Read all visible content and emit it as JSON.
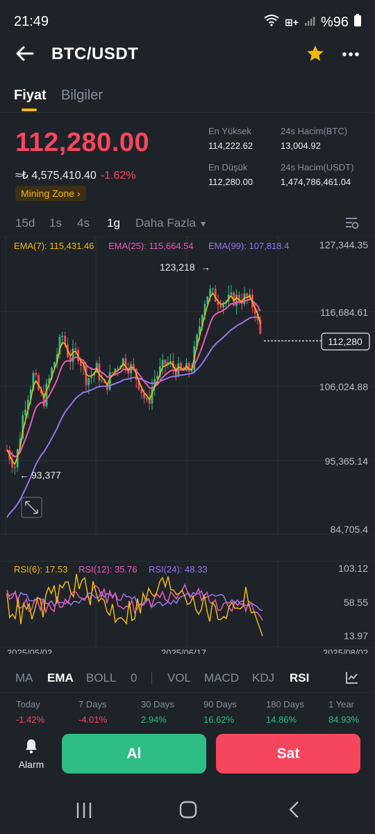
{
  "status": {
    "time": "21:49",
    "battery": "%96"
  },
  "header": {
    "pair": "BTC/USDT"
  },
  "tabs": [
    {
      "label": "Fiyat"
    },
    {
      "label": "Bilgiler"
    }
  ],
  "price": {
    "last": "112,280.00",
    "fiat": "≈₺ 4,575,410.40",
    "change": "-1.62%",
    "badge": "Mining Zone"
  },
  "stats": {
    "high_label": "En Yüksek",
    "high": "114,222.62",
    "low_label": "En Düşük",
    "low": "112,280.00",
    "vol_btc_label": "24s Hacim(BTC)",
    "vol_btc": "13,004.92",
    "vol_usdt_label": "24s Hacim(USDT)",
    "vol_usdt": "1,474,786,461.04"
  },
  "intervals": {
    "i1": "15d",
    "i2": "1s",
    "i3": "4s",
    "i4": "1g",
    "more": "Daha Fazla"
  },
  "chart": {
    "ema7": "EMA(7): 115,431.46",
    "ema25": "EMA(25): 115,664.54",
    "ema99": "EMA(99): 107,818.4",
    "y_ticks": [
      "127,344.35",
      "116,684.61",
      "106,024.88",
      "95,365.14",
      "84,705.4"
    ],
    "high_marker": "123,218",
    "low_marker": "93,377",
    "last_price_tag": "112,280",
    "rsi6": "RSI(6): 17.53",
    "rsi12": "RSI(12): 35.76",
    "rsi24": "RSI(24): 48.33",
    "rsi_ticks": [
      "103.12",
      "58.55",
      "13.97"
    ],
    "x_ticks": [
      "2025/05/02",
      "2025/06/17",
      "2025/08/02"
    ],
    "colors": {
      "ema7": "#f0b90b",
      "ema25": "#e85bb4",
      "ema99": "#9a75e8",
      "up": "#2ebd85",
      "down": "#f6465d"
    }
  },
  "indicators": {
    "ma": "MA",
    "ema": "EMA",
    "boll": "BOLL",
    "zero": "0",
    "vol": "VOL",
    "macd": "MACD",
    "kdj": "KDJ",
    "rsi": "RSI"
  },
  "performance": [
    {
      "label": "Today",
      "value": "-1.42%"
    },
    {
      "label": "7 Days",
      "value": "-4.01%"
    },
    {
      "label": "30 Days",
      "value": "2.94%"
    },
    {
      "label": "90 Days",
      "value": "16.62%"
    },
    {
      "label": "180 Days",
      "value": "14.86%"
    },
    {
      "label": "1 Year",
      "value": "84.93%"
    }
  ],
  "actions": {
    "alarm": "Alarm",
    "buy": "Al",
    "sell": "Sat"
  }
}
